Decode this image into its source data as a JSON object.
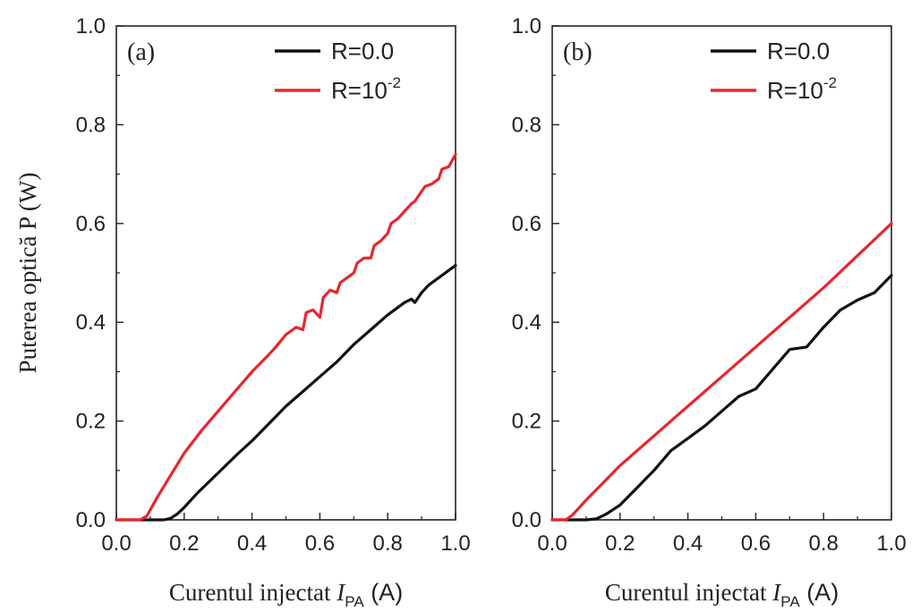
{
  "colors": {
    "r0": "#111111",
    "r1": "#e8262b"
  },
  "chart_data": [
    {
      "type": "line",
      "panel_label": "(a)",
      "xlabel": {
        "main": "Curentul injectat ",
        "var": "I",
        "sub": "PA",
        "unit": " (A)"
      },
      "ylabel": "Puterea optică P (W)",
      "xlim": [
        0,
        1
      ],
      "ylim": [
        0,
        1
      ],
      "xticks": [
        "0.0",
        "0.2",
        "0.4",
        "0.6",
        "0.8",
        "1.0"
      ],
      "yticks": [
        "0.0",
        "0.2",
        "0.4",
        "0.6",
        "0.8",
        "1.0"
      ],
      "legend": {
        "position": "top-right"
      },
      "series": [
        {
          "name": "R=0.0",
          "name_sup": "",
          "color": "#111111",
          "x": [
            0,
            0.1,
            0.14,
            0.16,
            0.18,
            0.2,
            0.24,
            0.3,
            0.36,
            0.4,
            0.45,
            0.5,
            0.55,
            0.6,
            0.65,
            0.7,
            0.75,
            0.8,
            0.85,
            0.87,
            0.88,
            0.9,
            0.92,
            0.95,
            0.98,
            1.0
          ],
          "y": [
            0,
            0,
            0,
            0.003,
            0.012,
            0.025,
            0.055,
            0.095,
            0.135,
            0.16,
            0.195,
            0.23,
            0.26,
            0.29,
            0.32,
            0.355,
            0.385,
            0.415,
            0.44,
            0.447,
            0.44,
            0.46,
            0.475,
            0.49,
            0.505,
            0.515
          ]
        },
        {
          "name": "R=10",
          "name_sup": "-2",
          "color": "#e8262b",
          "x": [
            0,
            0.07,
            0.09,
            0.12,
            0.16,
            0.2,
            0.25,
            0.3,
            0.35,
            0.4,
            0.45,
            0.47,
            0.5,
            0.53,
            0.55,
            0.56,
            0.58,
            0.6,
            0.61,
            0.63,
            0.65,
            0.66,
            0.68,
            0.7,
            0.71,
            0.73,
            0.75,
            0.76,
            0.78,
            0.8,
            0.81,
            0.83,
            0.85,
            0.87,
            0.88,
            0.9,
            0.91,
            0.93,
            0.95,
            0.96,
            0.98,
            1.0
          ],
          "y": [
            0,
            0,
            0.008,
            0.045,
            0.09,
            0.135,
            0.18,
            0.22,
            0.26,
            0.3,
            0.335,
            0.35,
            0.375,
            0.39,
            0.385,
            0.42,
            0.425,
            0.41,
            0.45,
            0.465,
            0.46,
            0.48,
            0.49,
            0.5,
            0.52,
            0.53,
            0.53,
            0.555,
            0.565,
            0.58,
            0.6,
            0.61,
            0.625,
            0.64,
            0.645,
            0.665,
            0.675,
            0.68,
            0.69,
            0.71,
            0.715,
            0.74
          ]
        }
      ]
    },
    {
      "type": "line",
      "panel_label": "(b)",
      "xlabel": {
        "main": "Curentul injectat ",
        "var": "I",
        "sub": "PA",
        "unit": " (A)"
      },
      "ylabel": "",
      "xlim": [
        0,
        1
      ],
      "ylim": [
        0,
        1
      ],
      "xticks": [
        "0.0",
        "0.2",
        "0.4",
        "0.6",
        "0.8",
        "1.0"
      ],
      "yticks": [
        "0.0",
        "0.2",
        "0.4",
        "0.6",
        "0.8",
        "1.0"
      ],
      "legend": {
        "position": "top-right"
      },
      "series": [
        {
          "name": "R=0.0",
          "name_sup": "",
          "color": "#111111",
          "x": [
            0,
            0.1,
            0.13,
            0.16,
            0.2,
            0.25,
            0.3,
            0.35,
            0.4,
            0.45,
            0.5,
            0.55,
            0.6,
            0.65,
            0.7,
            0.75,
            0.8,
            0.85,
            0.9,
            0.95,
            1.0
          ],
          "y": [
            0,
            0,
            0.002,
            0.012,
            0.03,
            0.065,
            0.1,
            0.14,
            0.165,
            0.19,
            0.22,
            0.25,
            0.265,
            0.305,
            0.345,
            0.35,
            0.39,
            0.425,
            0.445,
            0.46,
            0.495
          ]
        },
        {
          "name": "R=10",
          "name_sup": "-2",
          "color": "#e8262b",
          "x": [
            0,
            0.04,
            0.06,
            0.1,
            0.15,
            0.2,
            0.3,
            0.4,
            0.5,
            0.6,
            0.7,
            0.8,
            0.9,
            1.0
          ],
          "y": [
            0,
            0,
            0.01,
            0.04,
            0.075,
            0.11,
            0.17,
            0.23,
            0.29,
            0.35,
            0.41,
            0.47,
            0.535,
            0.6
          ]
        }
      ]
    }
  ]
}
